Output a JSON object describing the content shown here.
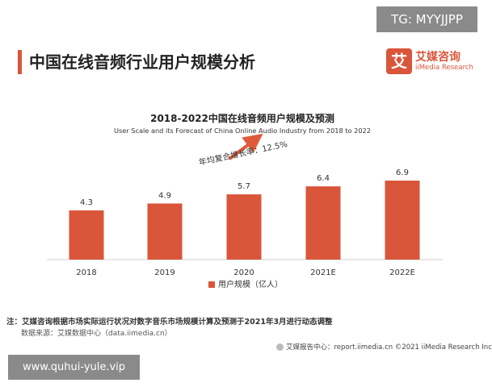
{
  "badge": "TG: MYYJJPP",
  "page_title": "中国在线音频行业用户规模分析",
  "logo": {
    "mark": "艾",
    "cn": "艾媒咨询",
    "en": "iiMedia Research"
  },
  "chart_data": {
    "type": "bar",
    "title": "2018-2022中国在线音频用户规模及预测",
    "subtitle": "User Scale and its Forecast of China Online Audio Industry from 2018 to 2022",
    "categories": [
      "2018",
      "2019",
      "2020",
      "2021E",
      "2022E"
    ],
    "series": [
      {
        "name": "用户规模（亿人）",
        "values": [
          4.3,
          4.9,
          5.7,
          6.4,
          6.9
        ]
      }
    ],
    "data_labels": [
      "4.3",
      "4.9",
      "5.7",
      "6.4",
      "6.9"
    ],
    "annotation": "年均复合增长率：12.5%",
    "ylim": [
      0,
      7.5
    ],
    "grid": false,
    "legend": "bottom",
    "bar_color": "#d9563a",
    "arrow_color": "#e05a3a"
  },
  "note": "注：艾媒咨询根据市场实际运行状况对数字音乐市场规模计算及预测于2021年3月进行动态调整",
  "source": "数据来源：艾媒数据中心（data.iimedia.cn）",
  "footer": "艾媒报告中心：report.iimedia.cn ©2021 iiMedia Research Inc",
  "watermark": "www.quhui-yule.vip"
}
